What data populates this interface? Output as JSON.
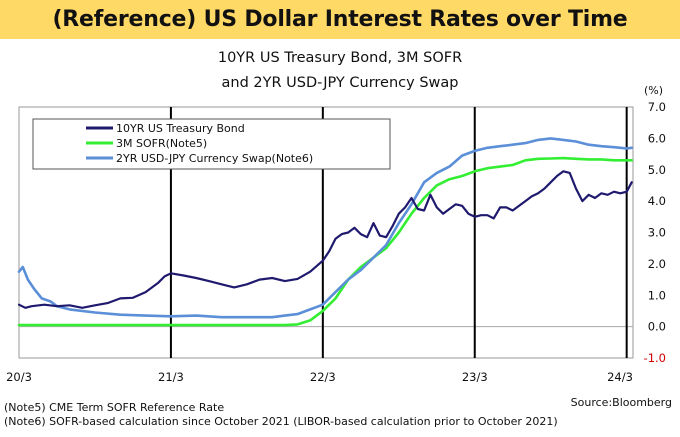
{
  "banner": {
    "title": "(Reference) US Dollar Interest Rates over Time"
  },
  "chart_data": {
    "type": "line",
    "title": "10YR US Treasury Bond,  3M SOFR",
    "subtitle": "and 2YR USD-JPY Currency Swap",
    "unit": "(%)",
    "ylim": [
      -1.0,
      7.0
    ],
    "yticks": [
      "7.0",
      "6.0",
      "5.0",
      "4.0",
      "3.0",
      "2.0",
      "1.0",
      "0.0",
      "-1.0"
    ],
    "xlim": [
      0,
      48.5
    ],
    "xticks": [
      {
        "label": "20/3",
        "x": 0
      },
      {
        "label": "21/3",
        "x": 12
      },
      {
        "label": "22/3",
        "x": 24
      },
      {
        "label": "23/3",
        "x": 36
      },
      {
        "label": "24/3",
        "x": 48
      }
    ],
    "grid": "vertical lines at year marks",
    "legend_position": "top-left",
    "series": [
      {
        "name": "10YR US Treasury Bond",
        "color": "#1f1a6e",
        "x": [
          0,
          0.5,
          1,
          2,
          3,
          4,
          5,
          6,
          7,
          8,
          9,
          10,
          11,
          11.5,
          12,
          13,
          14,
          15,
          16,
          17,
          18,
          19,
          20,
          21,
          22,
          23,
          24,
          24.5,
          25,
          25.5,
          26,
          26.5,
          27,
          27.5,
          28,
          28.5,
          29,
          29.5,
          30,
          30.5,
          31,
          31.5,
          32,
          32.5,
          33,
          33.5,
          34,
          34.5,
          35,
          35.5,
          36,
          36.5,
          37,
          37.5,
          38,
          38.5,
          39,
          39.5,
          40,
          40.5,
          41,
          41.5,
          42,
          42.5,
          43,
          43.5,
          44,
          44.5,
          45,
          45.5,
          46,
          46.5,
          47,
          47.5,
          48,
          48.4
        ],
        "values": [
          0.7,
          0.6,
          0.65,
          0.7,
          0.65,
          0.68,
          0.6,
          0.68,
          0.75,
          0.9,
          0.92,
          1.1,
          1.4,
          1.6,
          1.7,
          1.63,
          1.55,
          1.45,
          1.35,
          1.25,
          1.35,
          1.5,
          1.55,
          1.45,
          1.52,
          1.75,
          2.1,
          2.4,
          2.8,
          2.95,
          3.0,
          3.15,
          2.95,
          2.85,
          3.3,
          2.9,
          2.85,
          3.2,
          3.6,
          3.8,
          4.1,
          3.75,
          3.7,
          4.2,
          3.8,
          3.6,
          3.75,
          3.9,
          3.85,
          3.6,
          3.5,
          3.55,
          3.55,
          3.45,
          3.8,
          3.8,
          3.7,
          3.85,
          4.0,
          4.15,
          4.25,
          4.4,
          4.6,
          4.8,
          4.95,
          4.9,
          4.4,
          4.0,
          4.2,
          4.1,
          4.25,
          4.2,
          4.3,
          4.25,
          4.3,
          4.6
        ]
      },
      {
        "name": "3M SOFR(Note5)",
        "color": "#33ee33",
        "x": [
          0,
          3,
          6,
          9,
          12,
          15,
          18,
          21,
          22,
          23,
          24,
          25,
          26,
          27,
          28,
          29,
          30,
          31,
          32,
          33,
          34,
          35,
          36,
          37,
          38,
          39,
          40,
          41,
          42,
          43,
          44,
          45,
          46,
          47,
          48,
          48.4
        ],
        "values": [
          0.05,
          0.05,
          0.05,
          0.05,
          0.05,
          0.05,
          0.05,
          0.05,
          0.07,
          0.2,
          0.5,
          0.9,
          1.5,
          1.9,
          2.2,
          2.5,
          3.0,
          3.6,
          4.1,
          4.5,
          4.7,
          4.8,
          4.95,
          5.05,
          5.1,
          5.15,
          5.3,
          5.35,
          5.36,
          5.37,
          5.35,
          5.33,
          5.33,
          5.3,
          5.3,
          5.3
        ]
      },
      {
        "name": "2YR USD-JPY Currency Swap(Note6)",
        "color": "#5b8fd8",
        "x": [
          0,
          0.3,
          0.7,
          1.2,
          1.8,
          2.5,
          3,
          4,
          6,
          8,
          10,
          12,
          14,
          16,
          18,
          20,
          21,
          22,
          23,
          24,
          25,
          26,
          27,
          28,
          29,
          30,
          31,
          32,
          33,
          34,
          35,
          36,
          37,
          38,
          39,
          40,
          41,
          42,
          43,
          44,
          45,
          46,
          47,
          48,
          48.4
        ],
        "values": [
          1.75,
          1.9,
          1.5,
          1.2,
          0.9,
          0.8,
          0.65,
          0.55,
          0.45,
          0.38,
          0.35,
          0.33,
          0.35,
          0.3,
          0.3,
          0.3,
          0.35,
          0.4,
          0.55,
          0.7,
          1.1,
          1.5,
          1.8,
          2.2,
          2.6,
          3.3,
          3.9,
          4.6,
          4.9,
          5.1,
          5.45,
          5.6,
          5.7,
          5.75,
          5.8,
          5.85,
          5.95,
          6.0,
          5.95,
          5.9,
          5.8,
          5.75,
          5.72,
          5.68,
          5.7
        ]
      }
    ]
  },
  "notes": [
    "(Note5) CME Term SOFR Reference Rate",
    "(Note6) SOFR-based calculation since October 2021 (LIBOR-based calculation prior to October 2021)"
  ],
  "source": "Source:Bloomberg"
}
